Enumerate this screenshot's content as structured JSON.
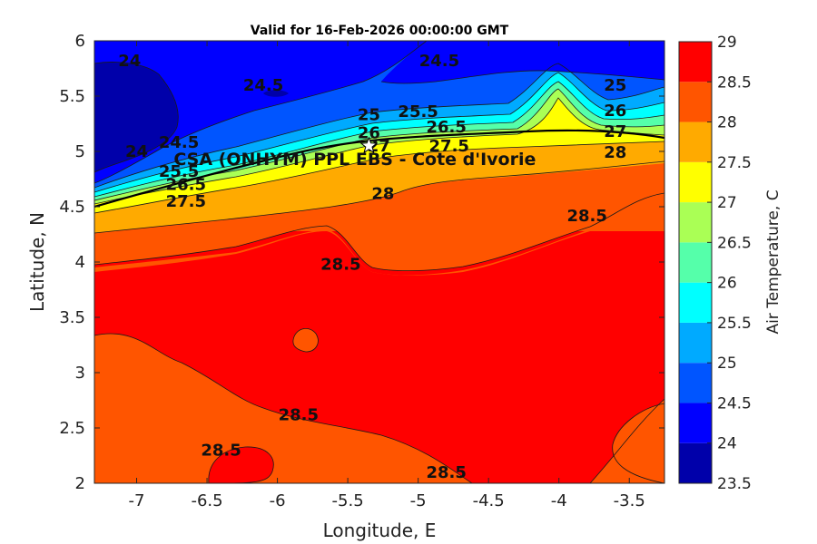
{
  "chart_data": {
    "type": "contour",
    "title": "Valid for 16-Feb-2026 00:00:00 GMT",
    "xlabel": "Longitude, E",
    "ylabel": "Latitude, N",
    "xlim": [
      -7.3,
      -3.25
    ],
    "ylim": [
      2,
      6
    ],
    "x_ticks": [
      "-7",
      "-6.5",
      "-6",
      "-5.5",
      "-5",
      "-4.5",
      "-4",
      "-3.5"
    ],
    "x_tick_values": [
      -7,
      -6.5,
      -6,
      -5.5,
      -5,
      -4.5,
      -4,
      -3.5
    ],
    "y_ticks": [
      "6",
      "5.5",
      "5",
      "4.5",
      "4",
      "3.5",
      "3",
      "2.5",
      "2"
    ],
    "y_tick_values": [
      6,
      5.5,
      5,
      4.5,
      4,
      3.5,
      3,
      2.5,
      2
    ],
    "colorbar": {
      "label": "Air Temperature, C",
      "ticks": [
        "29",
        "28.5",
        "28",
        "27.5",
        "27",
        "26.5",
        "26",
        "25.5",
        "25",
        "24.5",
        "24",
        "23.5"
      ],
      "levels": [
        23.5,
        24,
        24.5,
        25,
        25.5,
        26,
        26.5,
        27,
        27.5,
        28,
        28.5,
        29
      ],
      "colors": [
        "#0000aa",
        "#0000ff",
        "#0055ff",
        "#00aaff",
        "#00ffff",
        "#55ffaa",
        "#aaff55",
        "#ffff00",
        "#ffaa00",
        "#ff5500",
        "#ff0000",
        "#aa0000"
      ]
    },
    "contour_labels": [
      {
        "text": "24",
        "lon": -7.05,
        "lat": 5.82
      },
      {
        "text": "24.5",
        "lon": -6.1,
        "lat": 5.6
      },
      {
        "text": "24.5",
        "lon": -4.85,
        "lat": 5.82
      },
      {
        "text": "25",
        "lon": -3.6,
        "lat": 5.6
      },
      {
        "text": "25",
        "lon": -5.35,
        "lat": 5.33
      },
      {
        "text": "25.5",
        "lon": -5.0,
        "lat": 5.36
      },
      {
        "text": "26",
        "lon": -5.35,
        "lat": 5.17
      },
      {
        "text": "26.5",
        "lon": -4.8,
        "lat": 5.22
      },
      {
        "text": "26",
        "lon": -3.6,
        "lat": 5.37
      },
      {
        "text": "27",
        "lon": -3.6,
        "lat": 5.18
      },
      {
        "text": "27",
        "lon": -5.28,
        "lat": 5.05
      },
      {
        "text": "27.5",
        "lon": -4.78,
        "lat": 5.05
      },
      {
        "text": "28",
        "lon": -3.6,
        "lat": 4.99
      },
      {
        "text": "24",
        "lon": -7.0,
        "lat": 5.0
      },
      {
        "text": "24.5",
        "lon": -6.7,
        "lat": 5.08
      },
      {
        "text": "25.5",
        "lon": -6.7,
        "lat": 4.82
      },
      {
        "text": "26.5",
        "lon": -6.65,
        "lat": 4.7
      },
      {
        "text": "27.5",
        "lon": -6.65,
        "lat": 4.55
      },
      {
        "text": "28",
        "lon": -5.25,
        "lat": 4.62
      },
      {
        "text": "28.5",
        "lon": -3.8,
        "lat": 4.42
      },
      {
        "text": "28.5",
        "lon": -5.55,
        "lat": 3.98
      },
      {
        "text": "28.5",
        "lon": -5.85,
        "lat": 2.62
      },
      {
        "text": "28.5",
        "lon": -6.4,
        "lat": 2.3
      },
      {
        "text": "28.5",
        "lon": -4.8,
        "lat": 2.1
      }
    ],
    "site": {
      "label": "CSA (ONHYM) PPL EBS  - Cote d'Ivorie",
      "lon": -5.35,
      "lat": 5.05
    }
  }
}
